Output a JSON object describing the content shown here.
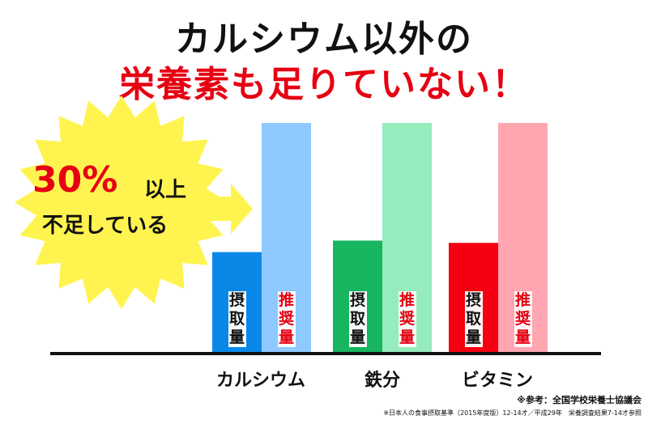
{
  "title": {
    "line1": "カルシウム以外の",
    "line2": "栄養素も足りていない！"
  },
  "callout": {
    "percent": "30%",
    "suffix": "以上",
    "line2": "不足している"
  },
  "colors": {
    "title_red": "#e60012",
    "burst": "#fff44f",
    "calcium_intake": "#0a88e8",
    "calcium_recommended": "#8ec9ff",
    "iron_intake": "#18b561",
    "iron_recommended": "#95ecbd",
    "vitamin_intake": "#f40012",
    "vitamin_recommended": "#ffa6b0"
  },
  "chart_data": {
    "type": "bar",
    "title": "カルシウム以外の栄養素も足りていない！",
    "categories": [
      "カルシウム",
      "鉄分",
      "ビタミン"
    ],
    "series": [
      {
        "name": "摂取量",
        "values": [
          44,
          49,
          48
        ]
      },
      {
        "name": "推奨量",
        "values": [
          100,
          100,
          100
        ]
      }
    ],
    "ylim": [
      0,
      100
    ],
    "grid": false,
    "legend": "bar-labels"
  },
  "bar_labels": {
    "intake": "摂取量",
    "recommended": "推奨量"
  },
  "source": {
    "line1": "※参考：全国学校栄養士協議会",
    "line2": "※日本人の食事摂取基準（2015年度版）12-14才／平成29年　栄養調査結果7-14才参照"
  }
}
